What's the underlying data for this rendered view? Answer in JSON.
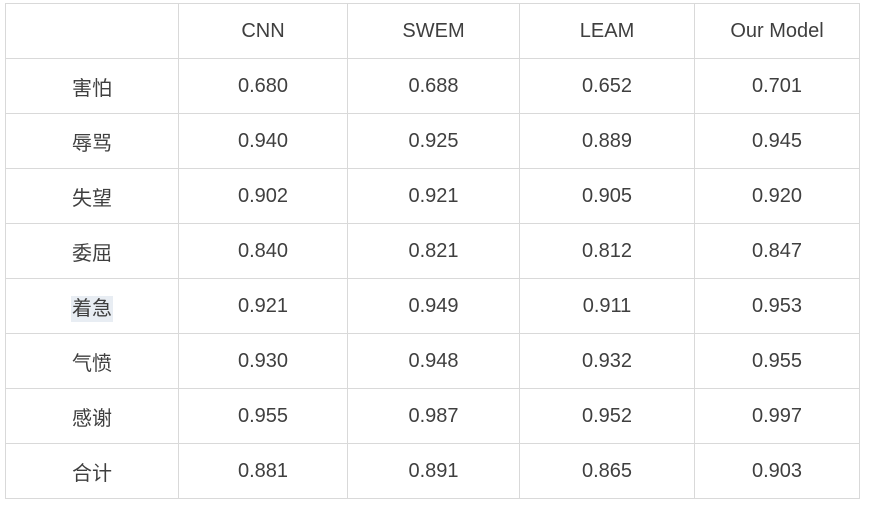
{
  "colors": {
    "accent_value_color": "#f8690e",
    "table_border_color": "#d9d9d9",
    "text_color": "#3f3f3f",
    "label_selection_highlight_bg": "#e8edf3"
  },
  "chart_data": {
    "type": "table",
    "title": "",
    "columns": [
      "",
      "CNN",
      "SWEM",
      "LEAM",
      "Our Model"
    ],
    "rows": [
      {
        "label": "害怕",
        "values": [
          "0.680",
          "0.688",
          "0.652",
          "0.701"
        ]
      },
      {
        "label": "辱骂",
        "values": [
          "0.940",
          "0.925",
          "0.889",
          "0.945"
        ]
      },
      {
        "label": "失望",
        "values": [
          "0.902",
          "0.921",
          "0.905",
          "0.920"
        ]
      },
      {
        "label": "委屈",
        "values": [
          "0.840",
          "0.821",
          "0.812",
          "0.847"
        ]
      },
      {
        "label": "着急",
        "values": [
          "0.921",
          "0.949",
          "0.911",
          "0.953"
        ],
        "label_highlighted": true
      },
      {
        "label": "气愤",
        "values": [
          "0.930",
          "0.948",
          "0.932",
          "0.955"
        ]
      },
      {
        "label": "感谢",
        "values": [
          "0.955",
          "0.987",
          "0.952",
          "0.997"
        ]
      },
      {
        "label": "合计",
        "values": [
          "0.881",
          "0.891",
          "0.865",
          "0.903"
        ],
        "accent_value_index": 3
      }
    ]
  }
}
